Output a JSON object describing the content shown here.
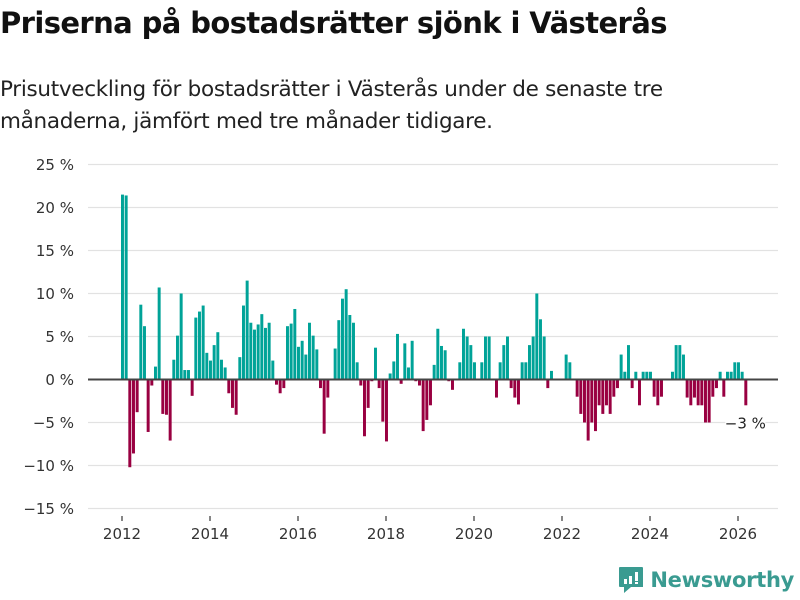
{
  "header": {
    "title": "Priserna på bostadsrätter sjönk i Västerås",
    "subtitle": "Prisutveckling för bostadsrätter i Västerås under de senaste tre månaderna, jämfört med tre månader tidigare."
  },
  "branding": {
    "name": "Newsworthy",
    "icon": "bar-chart-speech-icon",
    "color": "#3a9b91"
  },
  "colors": {
    "positive": "#00a398",
    "negative": "#990041",
    "zero_line": "#444444",
    "grid": "#e2e2e2"
  },
  "chart_data": {
    "type": "bar",
    "title": "Priserna på bostadsrätter sjönk i Västerås",
    "subtitle": "Prisutveckling för bostadsrätter i Västerås under de senaste tre månaderna, jämfört med tre månader tidigare.",
    "xlabel": "",
    "ylabel": "",
    "x_start": "2012-01",
    "x_frequency": "monthly",
    "x_range": [
      2011.2,
      2026.9
    ],
    "x_ticks": [
      2012,
      2014,
      2016,
      2018,
      2020,
      2022,
      2024,
      2026
    ],
    "x_tick_labels": [
      "2012",
      "2014",
      "2016",
      "2018",
      "2020",
      "2022",
      "2024",
      "2026"
    ],
    "ylim": [
      -15,
      25
    ],
    "y_ticks": [
      25,
      20,
      15,
      10,
      5,
      0,
      -5,
      -10,
      -15
    ],
    "y_tick_labels": [
      "25 %",
      "20 %",
      "15 %",
      "10 %",
      "5 %",
      "0 %",
      "−5 %",
      "−10 %",
      "−15 %"
    ],
    "grid": true,
    "legend": "none",
    "annotation": {
      "text": "−3 %",
      "target": "last"
    },
    "unit": "%",
    "values": [
      21.5,
      21.4,
      -10.2,
      -8.6,
      -3.8,
      8.7,
      6.2,
      -6.1,
      -0.7,
      1.5,
      10.7,
      -4.0,
      -4.1,
      -7.1,
      2.3,
      5.1,
      10.0,
      1.1,
      1.1,
      -1.9,
      7.2,
      7.9,
      8.6,
      3.1,
      2.2,
      4.0,
      5.5,
      2.3,
      1.4,
      -1.6,
      -3.3,
      -4.1,
      2.6,
      8.6,
      11.5,
      6.6,
      5.8,
      6.4,
      7.6,
      6.0,
      6.6,
      2.2,
      -0.6,
      -1.6,
      -1.0,
      6.2,
      6.5,
      8.2,
      3.8,
      4.5,
      2.9,
      6.6,
      5.1,
      3.5,
      -1.0,
      -6.3,
      -2.1,
      0,
      3.6,
      6.9,
      9.4,
      10.5,
      7.5,
      6.6,
      2.0,
      -0.7,
      -6.6,
      -3.3,
      -0.2,
      3.7,
      -1.0,
      -4.9,
      -7.2,
      0.7,
      2.1,
      5.3,
      -0.5,
      4.2,
      1.4,
      4.5,
      -0.2,
      -0.7,
      -6.0,
      -4.7,
      -3.0,
      1.7,
      5.9,
      3.9,
      3.4,
      -0.2,
      -1.2,
      0,
      2.0,
      5.9,
      5.0,
      4.0,
      2.0,
      0,
      2.0,
      5.0,
      5.0,
      0,
      -2.1,
      2.0,
      4.0,
      5.0,
      -1.0,
      -2.1,
      -2.9,
      2.0,
      2.0,
      4.0,
      5.0,
      10.0,
      7.0,
      5.0,
      -1.0,
      1.0,
      0,
      0,
      0,
      2.9,
      2.0,
      0,
      -2.0,
      -4.0,
      -5.0,
      -7.1,
      -5.0,
      -6.0,
      -3.0,
      -4.0,
      -3.0,
      -4.0,
      -2.0,
      -1.0,
      2.9,
      0.9,
      4.0,
      -1.0,
      0.9,
      -3.0,
      0.9,
      0.9,
      0.9,
      -2.0,
      -3.0,
      -2.0,
      0,
      0,
      0.9,
      4.0,
      4.0,
      2.9,
      -2.1,
      -3.0,
      -2.1,
      -3.0,
      -3.0,
      -5.0,
      -5.0,
      -2.0,
      -1.0,
      0.9,
      -2.0,
      0.9,
      0.9,
      2.0,
      2.0,
      0.9,
      -3.0
    ]
  }
}
